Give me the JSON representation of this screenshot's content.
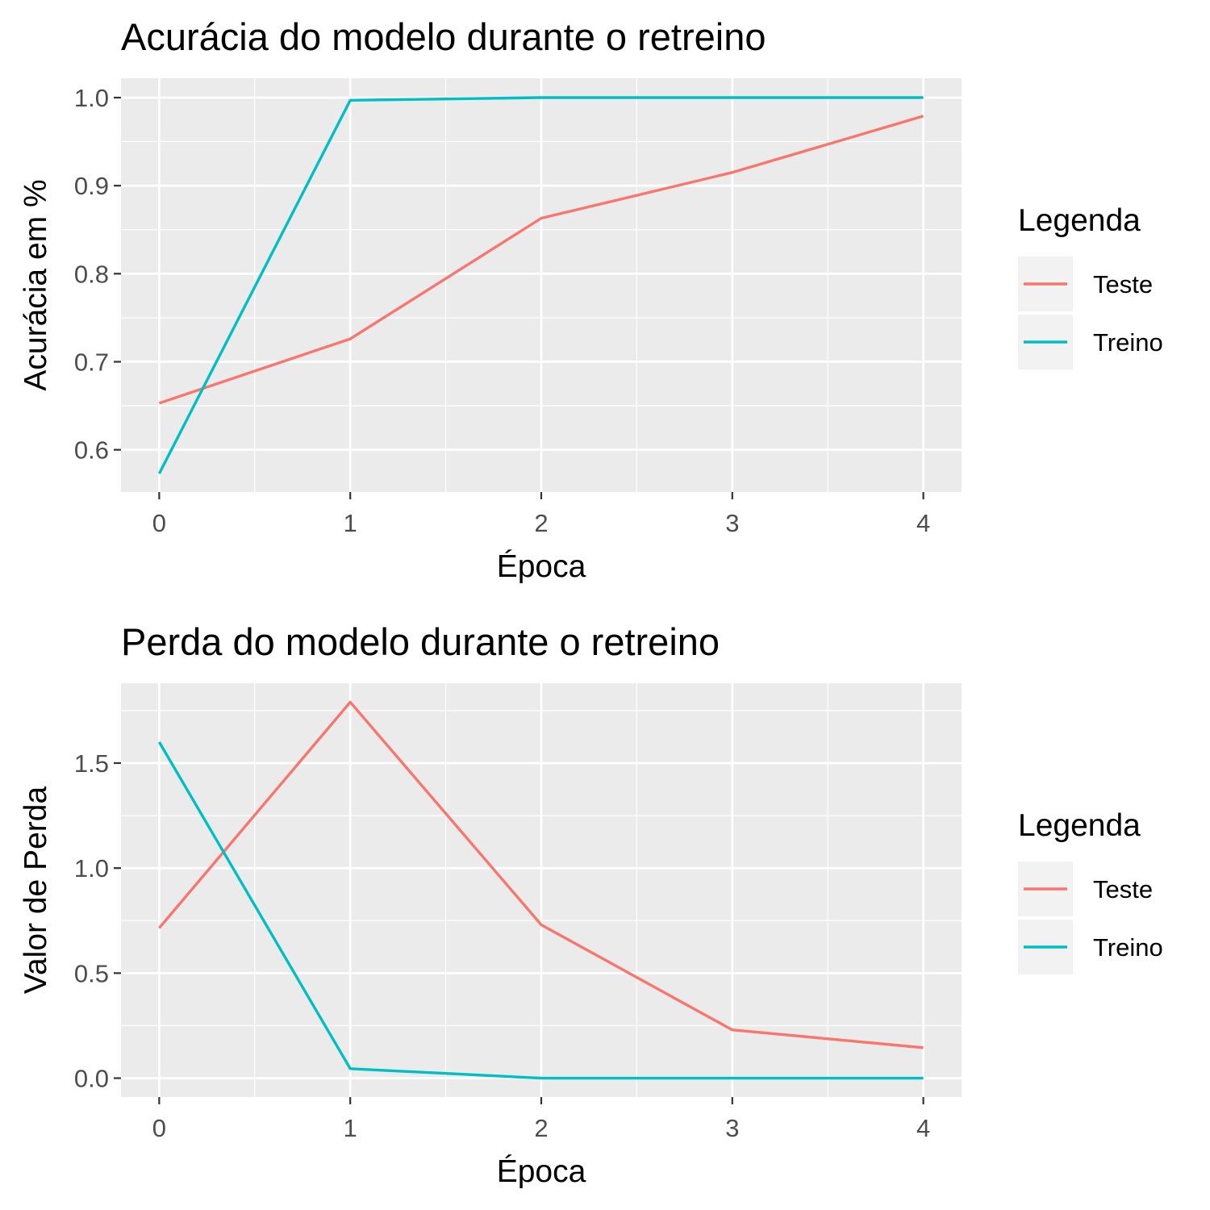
{
  "chart_data": [
    {
      "type": "line",
      "title": "Acurácia do modelo durante o retreino",
      "xlabel": "Época",
      "ylabel": "Acurácia em %",
      "x": [
        0,
        1,
        2,
        3,
        4
      ],
      "xticks": [
        "0",
        "1",
        "2",
        "3",
        "4"
      ],
      "yticks": [
        0.6,
        0.7,
        0.8,
        0.9,
        1.0
      ],
      "ytick_labels": [
        "0.6",
        "0.7",
        "0.8",
        "0.9",
        "1.0"
      ],
      "xlim": [
        -0.2,
        4.2
      ],
      "ylim": [
        0.552,
        1.022
      ],
      "grid": true,
      "legend": {
        "title": "Legenda",
        "position": "right",
        "entries": [
          "Teste",
          "Treino"
        ]
      },
      "series": [
        {
          "name": "Teste",
          "color": "#F8766D",
          "values": [
            0.653,
            0.726,
            0.863,
            0.915,
            0.979
          ]
        },
        {
          "name": "Treino",
          "color": "#00BFC4",
          "values": [
            0.573,
            0.997,
            1.0,
            1.0,
            1.0
          ]
        }
      ]
    },
    {
      "type": "line",
      "title": "Perda do modelo durante o retreino",
      "xlabel": "Época",
      "ylabel": "Valor de Perda",
      "x": [
        0,
        1,
        2,
        3,
        4
      ],
      "xticks": [
        "0",
        "1",
        "2",
        "3",
        "4"
      ],
      "yticks": [
        0.0,
        0.5,
        1.0,
        1.5
      ],
      "ytick_labels": [
        "0.0",
        "0.5",
        "1.0",
        "1.5"
      ],
      "xlim": [
        -0.2,
        4.2
      ],
      "ylim": [
        -0.09,
        1.88
      ],
      "grid": true,
      "legend": {
        "title": "Legenda",
        "position": "right",
        "entries": [
          "Teste",
          "Treino"
        ]
      },
      "series": [
        {
          "name": "Teste",
          "color": "#F8766D",
          "values": [
            0.715,
            1.79,
            0.73,
            0.23,
            0.145
          ]
        },
        {
          "name": "Treino",
          "color": "#00BFC4",
          "values": [
            1.6,
            0.045,
            0.0,
            0.0,
            0.0
          ]
        }
      ]
    }
  ]
}
